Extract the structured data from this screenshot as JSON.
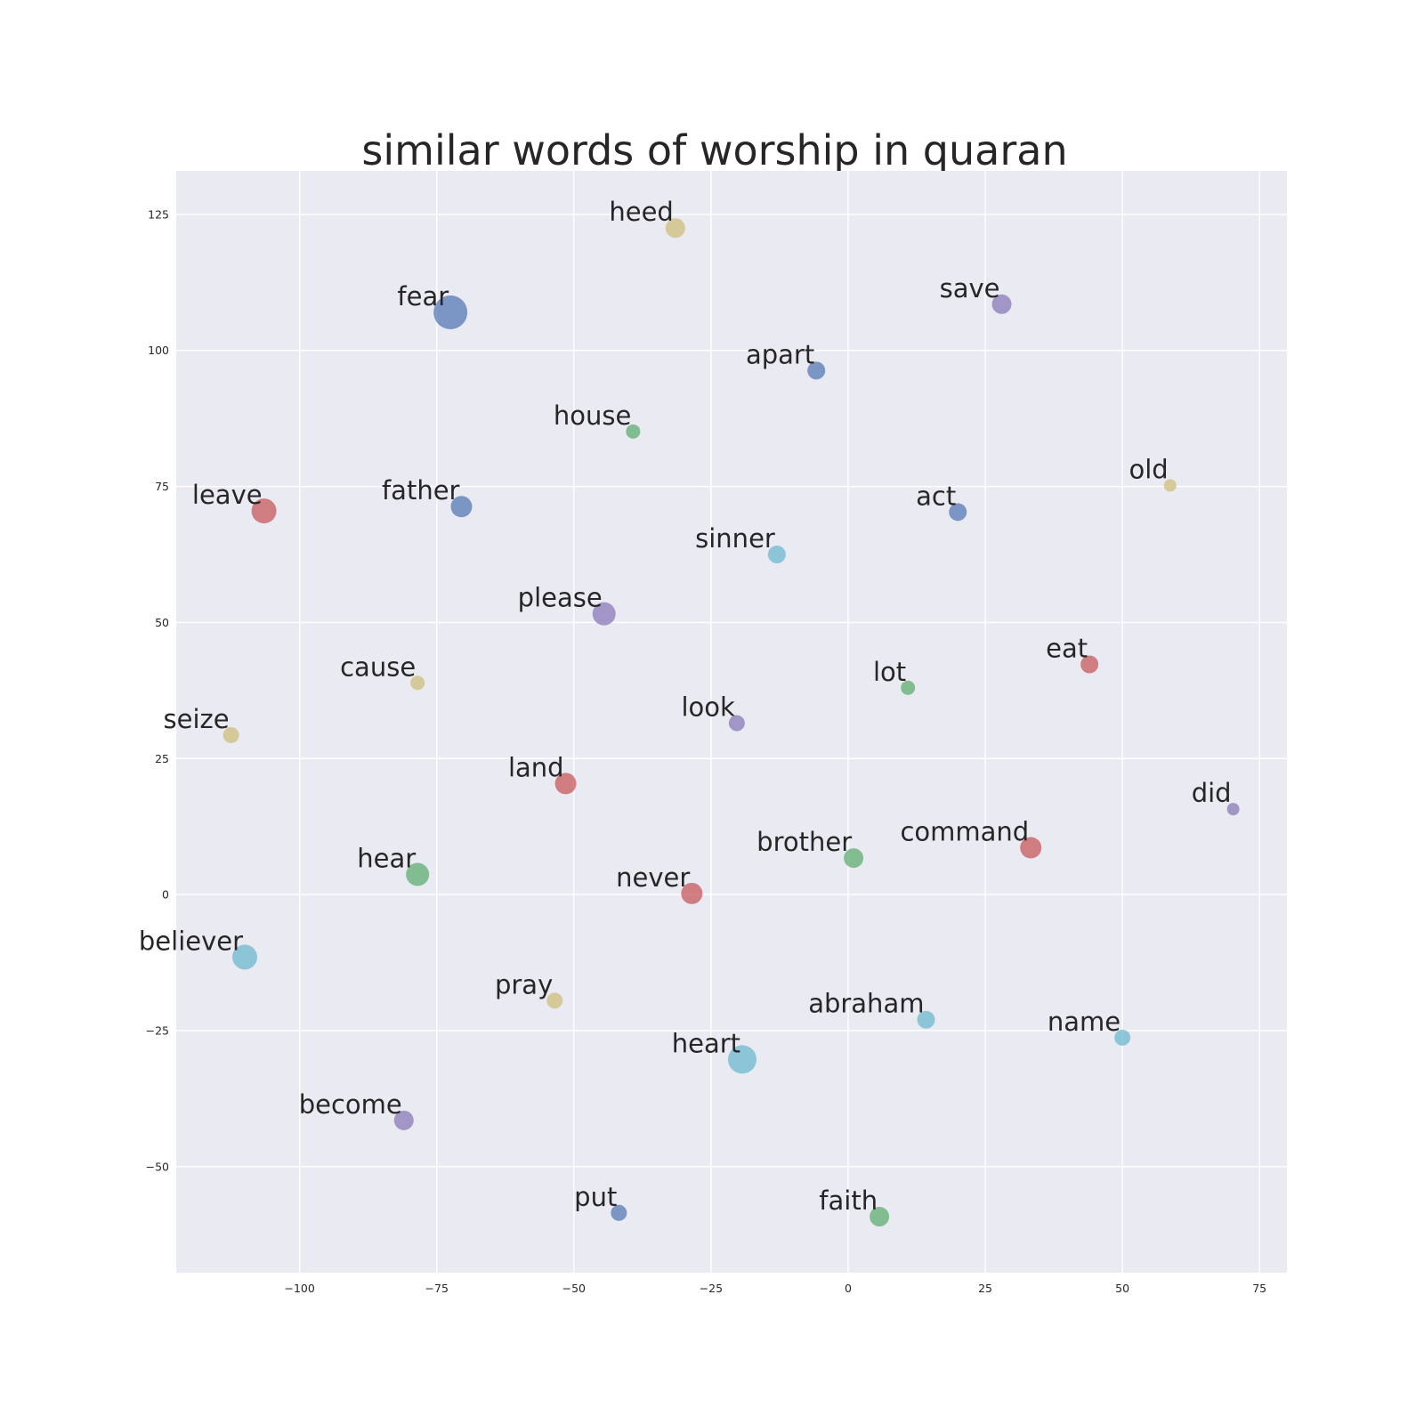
{
  "chart_data": {
    "type": "scatter",
    "title": "similar words of worship in quaran",
    "xlabel": "",
    "ylabel": "",
    "xlim": [
      -122.5,
      80
    ],
    "ylim": [
      -69.5,
      133
    ],
    "xticks": [
      -100,
      -75,
      -50,
      -25,
      0,
      25,
      50,
      75
    ],
    "yticks": [
      -50,
      -25,
      0,
      25,
      50,
      75,
      100,
      125
    ],
    "xtick_labels": [
      "−100",
      "−75",
      "−50",
      "−25",
      "0",
      "25",
      "50",
      "75"
    ],
    "ytick_labels": [
      "−50",
      "−25",
      "0",
      "25",
      "50",
      "75",
      "100",
      "125"
    ],
    "grid": true,
    "background": "#eaeaf2",
    "colors": {
      "blue": "#4c72b0",
      "green": "#55a868",
      "red": "#c44e52",
      "purple": "#8172b2",
      "yellow": "#ccb974",
      "cyan": "#64b5cd"
    },
    "points": [
      {
        "label": "heed",
        "x": -31.5,
        "y": 122.5,
        "color": "yellow",
        "size": 11
      },
      {
        "label": "fear",
        "x": -72.5,
        "y": 107,
        "color": "blue",
        "size": 19
      },
      {
        "label": "save",
        "x": 28,
        "y": 108.5,
        "color": "purple",
        "size": 11
      },
      {
        "label": "apart",
        "x": -5.8,
        "y": 96.3,
        "color": "blue",
        "size": 10
      },
      {
        "label": "house",
        "x": -39.2,
        "y": 85.1,
        "color": "green",
        "size": 8
      },
      {
        "label": "old",
        "x": 58.7,
        "y": 75.2,
        "color": "yellow",
        "size": 7
      },
      {
        "label": "leave",
        "x": -106.5,
        "y": 70.5,
        "color": "red",
        "size": 14
      },
      {
        "label": "father",
        "x": -70.5,
        "y": 71.3,
        "color": "blue",
        "size": 12
      },
      {
        "label": "act",
        "x": 20,
        "y": 70.3,
        "color": "blue",
        "size": 10
      },
      {
        "label": "sinner",
        "x": -13,
        "y": 62.5,
        "color": "cyan",
        "size": 10
      },
      {
        "label": "please",
        "x": -44.5,
        "y": 51.6,
        "color": "purple",
        "size": 13
      },
      {
        "label": "eat",
        "x": 44,
        "y": 42.3,
        "color": "red",
        "size": 10
      },
      {
        "label": "cause",
        "x": -78.5,
        "y": 38.9,
        "color": "yellow",
        "size": 8
      },
      {
        "label": "lot",
        "x": 10.9,
        "y": 38,
        "color": "green",
        "size": 8
      },
      {
        "label": "seize",
        "x": -112.5,
        "y": 29.3,
        "color": "yellow",
        "size": 9
      },
      {
        "label": "look",
        "x": -20.3,
        "y": 31.5,
        "color": "purple",
        "size": 9
      },
      {
        "label": "land",
        "x": -51.5,
        "y": 20.4,
        "color": "red",
        "size": 12
      },
      {
        "label": "did",
        "x": 70.2,
        "y": 15.7,
        "color": "purple",
        "size": 7
      },
      {
        "label": "command",
        "x": 33.3,
        "y": 8.6,
        "color": "red",
        "size": 12
      },
      {
        "label": "brother",
        "x": 1,
        "y": 6.7,
        "color": "green",
        "size": 11
      },
      {
        "label": "hear",
        "x": -78.5,
        "y": 3.7,
        "color": "green",
        "size": 13
      },
      {
        "label": "never",
        "x": -28.5,
        "y": 0.2,
        "color": "red",
        "size": 12
      },
      {
        "label": "believer",
        "x": -110,
        "y": -11.5,
        "color": "cyan",
        "size": 14
      },
      {
        "label": "pray",
        "x": -53.5,
        "y": -19.5,
        "color": "yellow",
        "size": 9
      },
      {
        "label": "abraham",
        "x": 14.2,
        "y": -23,
        "color": "cyan",
        "size": 10
      },
      {
        "label": "name",
        "x": 50,
        "y": -26.3,
        "color": "cyan",
        "size": 9
      },
      {
        "label": "heart",
        "x": -19.3,
        "y": -30.3,
        "color": "cyan",
        "size": 16
      },
      {
        "label": "become",
        "x": -81,
        "y": -41.5,
        "color": "purple",
        "size": 11
      },
      {
        "label": "put",
        "x": -41.8,
        "y": -58.5,
        "color": "blue",
        "size": 9
      },
      {
        "label": "faith",
        "x": 5.7,
        "y": -59.2,
        "color": "green",
        "size": 11
      }
    ]
  }
}
